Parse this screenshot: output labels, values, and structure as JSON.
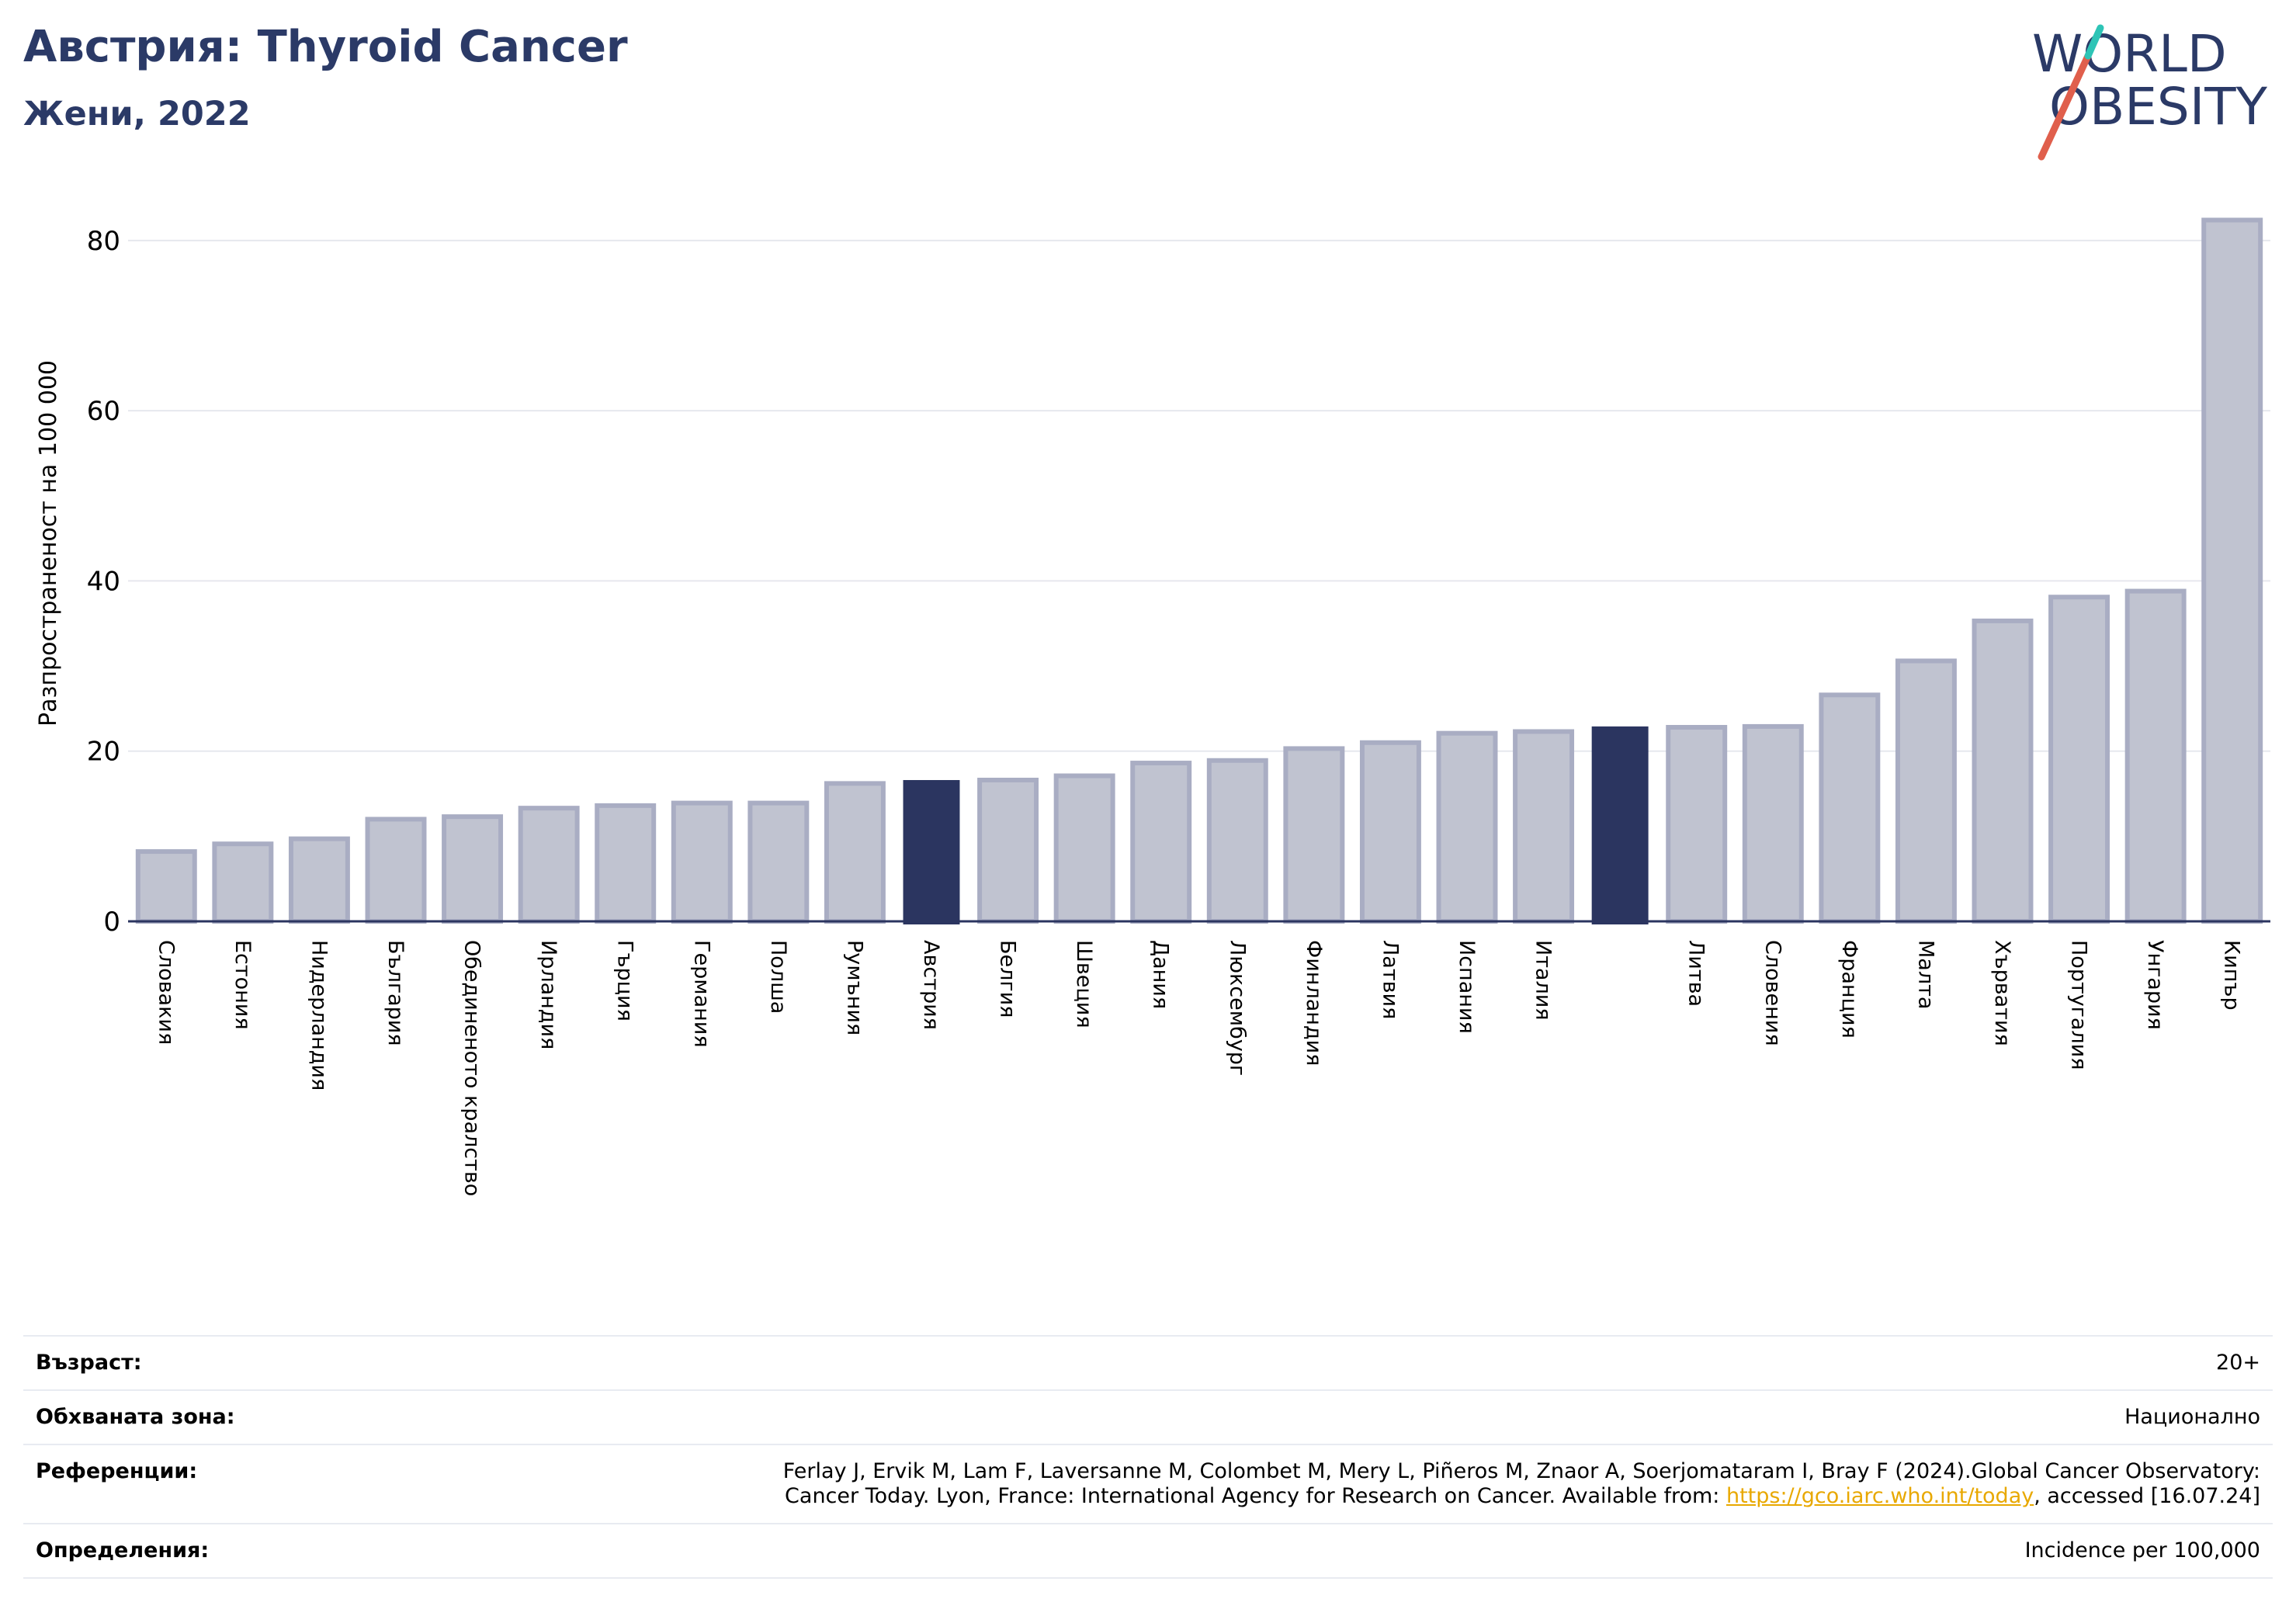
{
  "header": {
    "title": "Австрия: Thyroid Cancer",
    "subtitle": "Жени, 2022"
  },
  "logo": {
    "line1": "WORLD",
    "line2": "OBESITY"
  },
  "colors": {
    "bar": "#c0c3d0",
    "bar_edge": "#a9adc3",
    "highlight": "#2b3560",
    "axis": "#2b3560",
    "grid": "#e6e8ee",
    "brand": "#2b3a67",
    "slash": "#e05f4c",
    "slash_top": "#2ec4b6"
  },
  "chart_data": {
    "type": "bar",
    "ylabel": "Разпространеност  на 100 000",
    "ylim": [
      0,
      85
    ],
    "yticks": [
      0,
      20,
      40,
      60,
      80
    ],
    "grid": true,
    "categories": [
      "Словакия",
      "Естония",
      "Нидерландия",
      "България",
      "Обединеното кралство",
      "Ирландия",
      "Гърция",
      "Германия",
      "Полша",
      "Румъния",
      "Австрия",
      "Белгия",
      "Швеция",
      "Дания",
      "Люксембург",
      "Финландия",
      "Латвия",
      "Испания",
      "Италия",
      "",
      "Литва",
      "Словения",
      "Франция",
      "Малта",
      "Хърватия",
      "Португалия",
      "Унгария",
      "Кипър"
    ],
    "values": [
      8.2,
      9.1,
      9.7,
      12.0,
      12.3,
      13.3,
      13.6,
      13.9,
      13.9,
      16.2,
      16.6,
      16.6,
      17.1,
      18.6,
      18.9,
      20.3,
      21.0,
      22.1,
      22.3,
      22.9,
      22.8,
      22.9,
      26.6,
      30.6,
      35.3,
      38.1,
      38.8,
      82.4
    ],
    "highlighted": [
      10,
      19
    ]
  },
  "meta": {
    "age_label": "Възраст:",
    "age_value": "20+",
    "area_label": "Обхваната зона:",
    "area_value": "Национално",
    "refs_label": "Референции:",
    "refs_text_1": "Ferlay J, Ervik M, Lam F, Laversanne M, Colombet M, Mery L, Piñeros M, Znaor A, Soerjomataram I, Bray F (2024).Global Cancer Observatory:",
    "refs_text_2": "Cancer Today. Lyon, France: International Agency for Research on Cancer. Available from: ",
    "refs_link": "https://gco.iarc.who.int/today",
    "refs_text_3": ", accessed [16.07.24]",
    "defs_label": "Определения:",
    "defs_value": "Incidence per 100,000"
  }
}
